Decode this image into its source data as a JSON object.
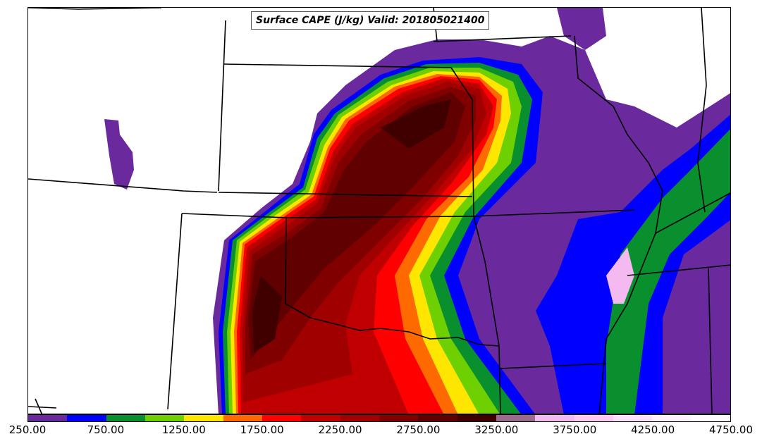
{
  "title": "Surface CAPE (J/kg) Valid: 201805021400",
  "colorbar": {
    "colors": [
      "#6a2a9e",
      "#0000ff",
      "#0a8f2f",
      "#6ed000",
      "#ffe600",
      "#ff6a00",
      "#ff0000",
      "#c00000",
      "#a00000",
      "#800000",
      "#600000",
      "#400000",
      "#9c6a8a",
      "#f3b9f0",
      "#ffc9f4",
      "#ffe0fb",
      "#fff2fd",
      "#fffafe"
    ],
    "ticks": [
      "250.00",
      "750.00",
      "1250.00",
      "1750.00",
      "2250.00",
      "2750.00",
      "3250.00",
      "3750.00",
      "4250.00",
      "4750.00"
    ]
  }
}
